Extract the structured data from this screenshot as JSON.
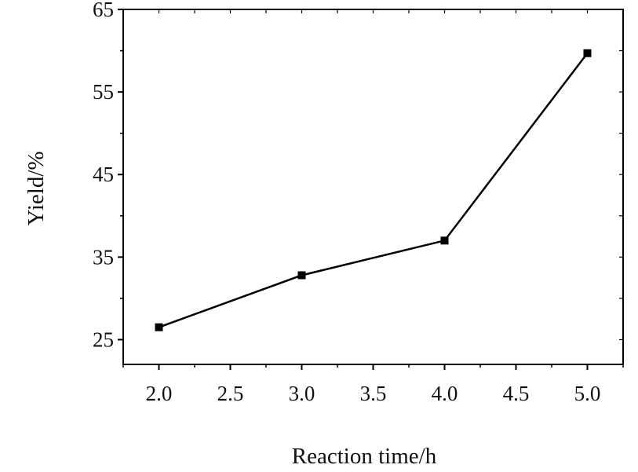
{
  "chart_data": {
    "type": "line",
    "title": "",
    "xlabel": "Reaction time/h",
    "ylabel": "Yield/%",
    "xlim": [
      1.75,
      5.25
    ],
    "ylim": [
      22,
      65
    ],
    "x_ticks": [
      2.0,
      2.5,
      3.0,
      3.5,
      4.0,
      4.5,
      5.0
    ],
    "x_tick_labels": [
      "2.0",
      "2.5",
      "3.0",
      "3.5",
      "4.0",
      "4.5",
      "5.0"
    ],
    "y_ticks": [
      25,
      35,
      45,
      55,
      65
    ],
    "y_tick_labels": [
      "25",
      "35",
      "45",
      "55",
      "65"
    ],
    "grid": false,
    "legend": "none",
    "series": [
      {
        "x": [
          2.0,
          3.0,
          4.0,
          5.0
        ],
        "y": [
          26.5,
          32.8,
          37.0,
          59.7
        ],
        "marker": "square",
        "color": "#000000"
      }
    ]
  }
}
